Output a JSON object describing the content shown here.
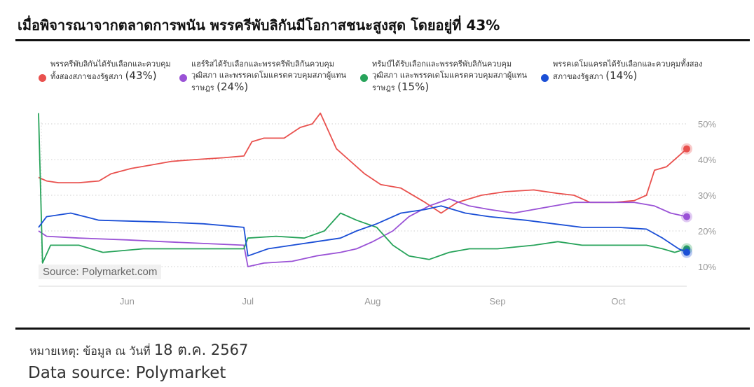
{
  "header": {
    "title": "เมื่อพิจารณาจากตลาดการพนัน พรรครีพับลิกันมีโอกาสชนะสูงสุด โดยอยู่ที่ 43%"
  },
  "footer": {
    "note_prefix": "หมายเหตุ: ข้อมูล ณ วันที่ ",
    "note_date": "18 ต.ค. 2567",
    "source": "Data source: Polymarket"
  },
  "watermark": "Source: Polymarket.com",
  "legend": [
    {
      "label": "พรรครีพับลิกันได้รับเลือกและควบคุมทั้งสองสภาของรัฐสภา",
      "pct": "(43%)",
      "color": "#e9514e"
    },
    {
      "label": "แฮร์ริสได้รับเลือกและพรรครีพับลิกันควบคุมวุฒิสภา และพรรคเดโมแครตควบคุมสภาผู้แทนราษฎร",
      "pct": "(24%)",
      "color": "#9a52d6"
    },
    {
      "label": "ทรัมป์ได้รับเลือกและพรรครีพับลิกันควบคุมวุฒิสภา และพรรคเดโมแครตควบคุมสภาผู้แทนราษฎร",
      "pct": "(15%)",
      "color": "#27a35a"
    },
    {
      "label": "พรรคเดโมแครตได้รับเลือกและควบคุมทั้งสองสภาของรัฐสภา",
      "pct": "(14%)",
      "color": "#1b4fd6"
    }
  ],
  "chart_data": {
    "type": "line",
    "x_ticks": [
      "Jun",
      "Jul",
      "Aug",
      "Sep",
      "Oct"
    ],
    "y_ticks": [
      "10%",
      "20%",
      "30%",
      "40%",
      "50%"
    ],
    "y_tick_values": [
      10,
      20,
      30,
      40,
      50
    ],
    "ylim": [
      4,
      56
    ],
    "x_domain": [
      "2024-05-10",
      "2024-10-18"
    ],
    "grid": true,
    "series": [
      {
        "name": "พรรครีพับลิกันได้รับเลือกและควบคุมทั้งสองสภาของรัฐสภา (43%)",
        "color": "#e9514e",
        "points": [
          [
            "2024-05-10",
            35
          ],
          [
            "2024-05-12",
            34
          ],
          [
            "2024-05-15",
            33.5
          ],
          [
            "2024-05-20",
            33.5
          ],
          [
            "2024-05-25",
            34
          ],
          [
            "2024-05-28",
            36
          ],
          [
            "2024-06-02",
            37.5
          ],
          [
            "2024-06-07",
            38.5
          ],
          [
            "2024-06-12",
            39.5
          ],
          [
            "2024-06-18",
            40
          ],
          [
            "2024-06-25",
            40.5
          ],
          [
            "2024-06-30",
            41
          ],
          [
            "2024-07-02",
            45
          ],
          [
            "2024-07-05",
            46
          ],
          [
            "2024-07-10",
            46
          ],
          [
            "2024-07-14",
            49
          ],
          [
            "2024-07-17",
            50
          ],
          [
            "2024-07-19",
            53
          ],
          [
            "2024-07-21",
            48
          ],
          [
            "2024-07-23",
            43
          ],
          [
            "2024-07-26",
            40
          ],
          [
            "2024-07-30",
            36
          ],
          [
            "2024-08-03",
            33
          ],
          [
            "2024-08-08",
            32
          ],
          [
            "2024-08-14",
            28
          ],
          [
            "2024-08-18",
            25
          ],
          [
            "2024-08-22",
            28
          ],
          [
            "2024-08-28",
            30
          ],
          [
            "2024-09-03",
            31
          ],
          [
            "2024-09-10",
            31.5
          ],
          [
            "2024-09-16",
            30.5
          ],
          [
            "2024-09-20",
            30
          ],
          [
            "2024-09-24",
            28
          ],
          [
            "2024-09-30",
            28
          ],
          [
            "2024-10-05",
            28.5
          ],
          [
            "2024-10-08",
            30
          ],
          [
            "2024-10-10",
            37
          ],
          [
            "2024-10-13",
            38
          ],
          [
            "2024-10-16",
            41
          ],
          [
            "2024-10-18",
            43
          ]
        ]
      },
      {
        "name": "แฮร์ริสได้รับเลือกและพรรครีพับลิกันควบคุมวุฒิสภา และพรรคเดโมแครตควบคุมสภาผู้แทนราษฎร (24%)",
        "color": "#9a52d6",
        "points": [
          [
            "2024-05-10",
            20
          ],
          [
            "2024-05-12",
            18.5
          ],
          [
            "2024-05-20",
            18
          ],
          [
            "2024-06-01",
            17.5
          ],
          [
            "2024-06-10",
            17
          ],
          [
            "2024-06-20",
            16.5
          ],
          [
            "2024-06-30",
            16
          ],
          [
            "2024-07-01",
            10
          ],
          [
            "2024-07-05",
            11
          ],
          [
            "2024-07-12",
            11.5
          ],
          [
            "2024-07-18",
            13
          ],
          [
            "2024-07-24",
            14
          ],
          [
            "2024-07-28",
            15
          ],
          [
            "2024-08-01",
            17
          ],
          [
            "2024-08-06",
            20
          ],
          [
            "2024-08-10",
            24
          ],
          [
            "2024-08-15",
            27
          ],
          [
            "2024-08-20",
            29
          ],
          [
            "2024-08-25",
            27
          ],
          [
            "2024-08-30",
            26
          ],
          [
            "2024-09-05",
            25
          ],
          [
            "2024-09-10",
            26
          ],
          [
            "2024-09-15",
            27
          ],
          [
            "2024-09-20",
            28
          ],
          [
            "2024-09-28",
            28
          ],
          [
            "2024-10-05",
            28
          ],
          [
            "2024-10-10",
            27
          ],
          [
            "2024-10-14",
            25
          ],
          [
            "2024-10-18",
            24
          ]
        ]
      },
      {
        "name": "ทรัมป์ได้รับเลือกและพรรครีพับลิกันควบคุมวุฒิสภา และพรรคเดโมแครตควบคุมสภาผู้แทนราษฎร (15%)",
        "color": "#27a35a",
        "points": [
          [
            "2024-05-10",
            53
          ],
          [
            "2024-05-11",
            11
          ],
          [
            "2024-05-13",
            16
          ],
          [
            "2024-05-20",
            16
          ],
          [
            "2024-05-26",
            14
          ],
          [
            "2024-06-05",
            15
          ],
          [
            "2024-06-15",
            15
          ],
          [
            "2024-06-30",
            15
          ],
          [
            "2024-07-01",
            18
          ],
          [
            "2024-07-08",
            18.5
          ],
          [
            "2024-07-15",
            18
          ],
          [
            "2024-07-20",
            20
          ],
          [
            "2024-07-24",
            25
          ],
          [
            "2024-07-28",
            23
          ],
          [
            "2024-08-02",
            21
          ],
          [
            "2024-08-06",
            16
          ],
          [
            "2024-08-10",
            13
          ],
          [
            "2024-08-15",
            12
          ],
          [
            "2024-08-20",
            14
          ],
          [
            "2024-08-25",
            15
          ],
          [
            "2024-09-01",
            15
          ],
          [
            "2024-09-10",
            16
          ],
          [
            "2024-09-16",
            17
          ],
          [
            "2024-09-22",
            16
          ],
          [
            "2024-10-01",
            16
          ],
          [
            "2024-10-08",
            16
          ],
          [
            "2024-10-12",
            15
          ],
          [
            "2024-10-15",
            14
          ],
          [
            "2024-10-18",
            15
          ]
        ]
      },
      {
        "name": "พรรคเดโมแครตได้รับเลือกและควบคุมทั้งสองสภาของรัฐสภา (14%)",
        "color": "#1b4fd6",
        "points": [
          [
            "2024-05-10",
            21
          ],
          [
            "2024-05-12",
            24
          ],
          [
            "2024-05-18",
            25
          ],
          [
            "2024-05-25",
            23
          ],
          [
            "2024-06-10",
            22.5
          ],
          [
            "2024-06-20",
            22
          ],
          [
            "2024-06-30",
            21
          ],
          [
            "2024-07-01",
            13
          ],
          [
            "2024-07-06",
            15
          ],
          [
            "2024-07-12",
            16
          ],
          [
            "2024-07-18",
            17
          ],
          [
            "2024-07-24",
            18
          ],
          [
            "2024-07-28",
            20
          ],
          [
            "2024-08-02",
            22
          ],
          [
            "2024-08-08",
            25
          ],
          [
            "2024-08-14",
            26
          ],
          [
            "2024-08-18",
            27
          ],
          [
            "2024-08-24",
            25
          ],
          [
            "2024-08-30",
            24
          ],
          [
            "2024-09-08",
            23
          ],
          [
            "2024-09-15",
            22
          ],
          [
            "2024-09-22",
            21
          ],
          [
            "2024-10-01",
            21
          ],
          [
            "2024-10-08",
            20.5
          ],
          [
            "2024-10-12",
            18
          ],
          [
            "2024-10-16",
            15
          ],
          [
            "2024-10-18",
            14
          ]
        ]
      }
    ]
  }
}
